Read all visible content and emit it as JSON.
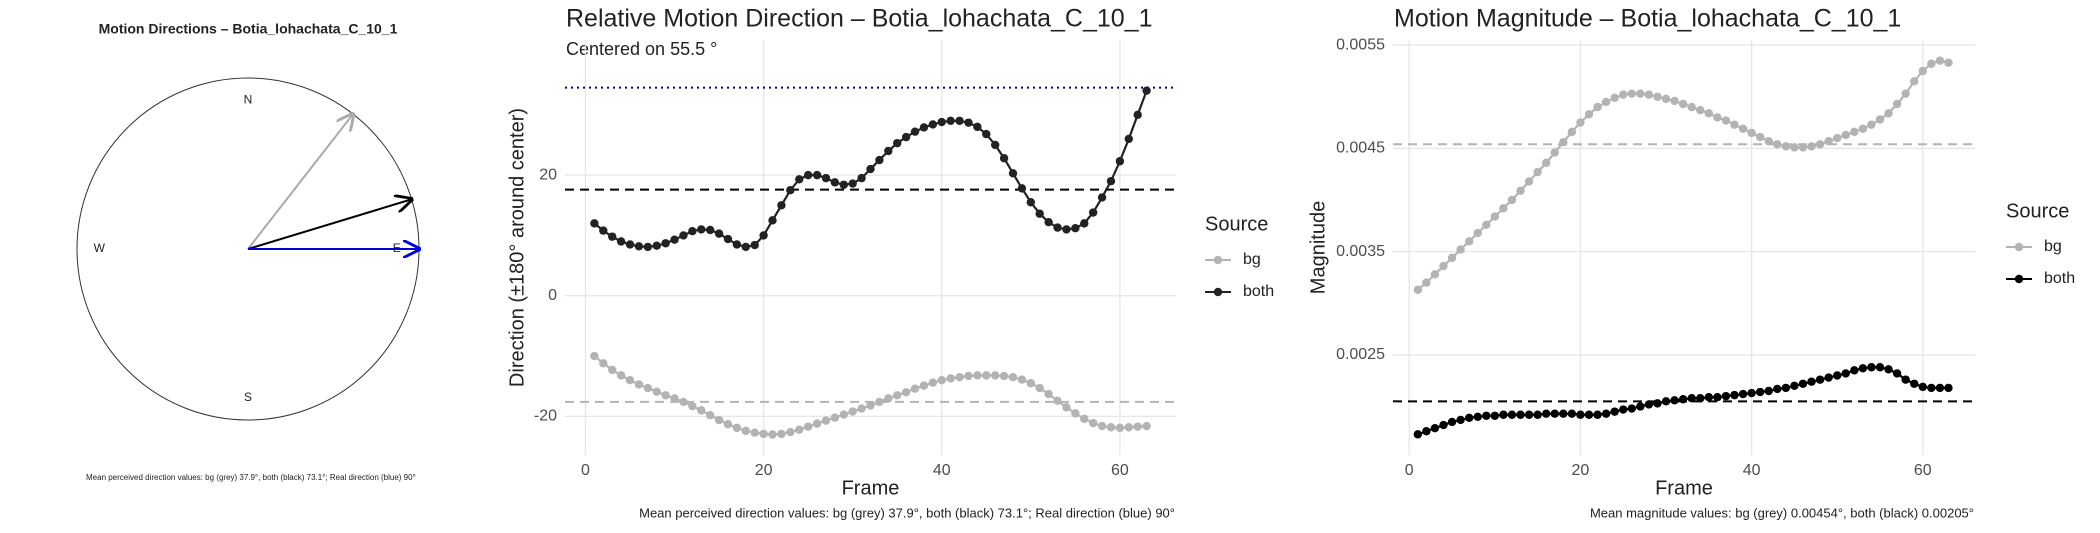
{
  "chart_data": [
    {
      "type": "compass",
      "title": "Motion Directions – Botia_lohachata_C_10_1",
      "compass_labels": [
        "N",
        "E",
        "S",
        "W"
      ],
      "arrows": [
        {
          "color": "#aaaaaa",
          "value": 37.9
        },
        {
          "color": "#000000",
          "value": 73.1
        },
        {
          "color": "#0000dd",
          "value": 90
        }
      ],
      "caption": "Mean perceived direction values: bg (grey) 37.9°, both (black) 73.1°; Real direction (blue) 90°"
    },
    {
      "type": "line",
      "title": "Relative Motion Direction – Botia_lohachata_C_10_1",
      "subtitle": "Centered on  55.5 °",
      "x_label": "Frame",
      "y_label": "Direction (±180° around center)",
      "legend_title": "Source",
      "caption": "Mean perceived direction values: bg (grey) 37.9°, both (black) 73.1°; Real direction (blue) 90°",
      "x": [
        1,
        2,
        3,
        4,
        5,
        6,
        7,
        8,
        9,
        10,
        11,
        12,
        13,
        14,
        15,
        16,
        17,
        18,
        19,
        20,
        21,
        22,
        23,
        24,
        25,
        26,
        27,
        28,
        29,
        30,
        31,
        32,
        33,
        34,
        35,
        36,
        37,
        38,
        39,
        40,
        41,
        42,
        43,
        44,
        45,
        46,
        47,
        48,
        49,
        50,
        51,
        52,
        53,
        54,
        55,
        56,
        57,
        58,
        59,
        60,
        61,
        62,
        63
      ],
      "series": [
        {
          "name": "bg",
          "color": "#b3b3b3",
          "values": [
            -10,
            -11.2,
            -12.3,
            -13.2,
            -14,
            -14.7,
            -15.3,
            -15.9,
            -16.5,
            -17,
            -17.6,
            -18.3,
            -19,
            -19.8,
            -20.6,
            -21.3,
            -21.9,
            -22.4,
            -22.7,
            -22.9,
            -23,
            -22.9,
            -22.6,
            -22.2,
            -21.7,
            -21.2,
            -20.7,
            -20.2,
            -19.7,
            -19.2,
            -18.7,
            -18.2,
            -17.6,
            -17,
            -16.5,
            -16,
            -15.4,
            -14.9,
            -14.4,
            -14,
            -13.7,
            -13.5,
            -13.3,
            -13.2,
            -13.2,
            -13.2,
            -13.3,
            -13.5,
            -13.9,
            -14.5,
            -15.3,
            -16.3,
            -17.4,
            -18.5,
            -19.5,
            -20.4,
            -21.1,
            -21.6,
            -21.8,
            -21.9,
            -21.8,
            -21.7,
            -21.6
          ]
        },
        {
          "name": "both",
          "color": "#222222",
          "values": [
            12,
            10.8,
            9.8,
            9,
            8.5,
            8.2,
            8.1,
            8.3,
            8.7,
            9.3,
            10,
            10.7,
            11,
            10.9,
            10.3,
            9.4,
            8.5,
            8.1,
            8.4,
            10,
            12.5,
            15,
            17.5,
            19.3,
            20,
            20,
            19.5,
            18.8,
            18.4,
            18.6,
            19.5,
            21,
            22.5,
            24,
            25.3,
            26.3,
            27.2,
            27.9,
            28.4,
            28.8,
            29,
            29,
            28.7,
            28,
            26.8,
            25,
            22.8,
            20.3,
            17.8,
            15.5,
            13.6,
            12.2,
            11.3,
            11,
            11.2,
            12,
            13.8,
            16.3,
            19,
            22.3,
            26,
            30,
            34
          ]
        }
      ],
      "hlines": [
        {
          "value": 34.5,
          "color": "#00008b",
          "linestyle": "dotted"
        },
        {
          "value": 17.6,
          "color": "#000000",
          "linestyle": "dashed"
        },
        {
          "value": -17.6,
          "color": "#b3b3b3",
          "linestyle": "dashed"
        }
      ],
      "xlim": [
        -2.3,
        66.3
      ],
      "ylim": [
        -26.4,
        42.4
      ],
      "xticks": [
        0,
        20,
        40,
        60
      ],
      "yticks": [
        -20,
        0,
        20
      ],
      "grid": true
    },
    {
      "type": "line",
      "title": "Motion Magnitude – Botia_lohachata_C_10_1",
      "x_label": "Frame",
      "y_label": "Magnitude",
      "legend_title": "Source",
      "caption": "Mean magnitude values: bg (grey) 0.00454°, both (black) 0.00205°",
      "x": [
        1,
        2,
        3,
        4,
        5,
        6,
        7,
        8,
        9,
        10,
        11,
        12,
        13,
        14,
        15,
        16,
        17,
        18,
        19,
        20,
        21,
        22,
        23,
        24,
        25,
        26,
        27,
        28,
        29,
        30,
        31,
        32,
        33,
        34,
        35,
        36,
        37,
        38,
        39,
        40,
        41,
        42,
        43,
        44,
        45,
        46,
        47,
        48,
        49,
        50,
        51,
        52,
        53,
        54,
        55,
        56,
        57,
        58,
        59,
        60,
        61,
        62,
        63
      ],
      "series": [
        {
          "name": "bg",
          "color": "#b3b3b3",
          "values": [
            0.00313,
            0.0032,
            0.00328,
            0.00336,
            0.00344,
            0.00352,
            0.0036,
            0.00368,
            0.00376,
            0.00384,
            0.00392,
            0.004,
            0.00409,
            0.00418,
            0.00427,
            0.00436,
            0.00446,
            0.00456,
            0.00466,
            0.00475,
            0.00483,
            0.0049,
            0.00495,
            0.00499,
            0.00502,
            0.00503,
            0.00503,
            0.00502,
            0.005,
            0.00498,
            0.00496,
            0.00493,
            0.0049,
            0.00487,
            0.00484,
            0.0048,
            0.00477,
            0.00473,
            0.00469,
            0.00465,
            0.00461,
            0.00457,
            0.00454,
            0.00452,
            0.00451,
            0.00451,
            0.00452,
            0.00454,
            0.00457,
            0.0046,
            0.00463,
            0.00466,
            0.00469,
            0.00473,
            0.00478,
            0.00484,
            0.00493,
            0.00503,
            0.00515,
            0.00525,
            0.00532,
            0.00535,
            0.00533
          ]
        },
        {
          "name": "both",
          "color": "#000000",
          "values": [
            0.00173,
            0.00176,
            0.00179,
            0.00182,
            0.00185,
            0.00187,
            0.00189,
            0.0019,
            0.00191,
            0.00191,
            0.00192,
            0.00192,
            0.00192,
            0.00192,
            0.00192,
            0.00193,
            0.00193,
            0.00193,
            0.00193,
            0.00192,
            0.00192,
            0.00192,
            0.00193,
            0.00195,
            0.00197,
            0.00198,
            0.002,
            0.00202,
            0.00203,
            0.00205,
            0.00206,
            0.00207,
            0.00208,
            0.00208,
            0.00209,
            0.00209,
            0.0021,
            0.00211,
            0.00212,
            0.00213,
            0.00214,
            0.00215,
            0.00217,
            0.00218,
            0.0022,
            0.00222,
            0.00224,
            0.00226,
            0.00228,
            0.0023,
            0.00232,
            0.00235,
            0.00237,
            0.00238,
            0.00238,
            0.00236,
            0.00232,
            0.00226,
            0.00222,
            0.00219,
            0.00218,
            0.00218,
            0.00218
          ]
        }
      ],
      "hlines": [
        {
          "value": 0.00454,
          "color": "#b3b3b3",
          "linestyle": "dashed"
        },
        {
          "value": 0.00205,
          "color": "#000000",
          "linestyle": "dashed"
        }
      ],
      "xlim": [
        -1.9,
        66.1
      ],
      "ylim": [
        0.00153,
        0.00555
      ],
      "xticks": [
        0,
        20,
        40,
        60
      ],
      "yticks": [
        0.0025,
        0.0035,
        0.0045,
        0.0055
      ],
      "grid": true
    }
  ]
}
